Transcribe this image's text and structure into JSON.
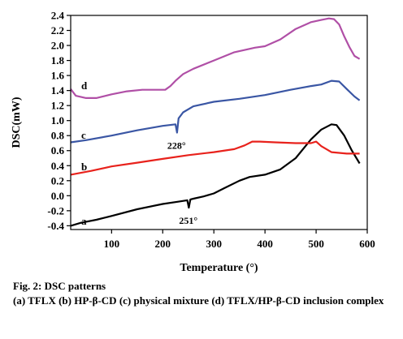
{
  "chart_data": {
    "type": "line",
    "xlabel": "Temperature (°)",
    "ylabel": "DSC(mW)",
    "xlim": [
      20,
      600
    ],
    "ylim": [
      -0.45,
      2.4
    ],
    "xticks": [
      100,
      200,
      300,
      400,
      500,
      600
    ],
    "yticks": [
      -0.4,
      -0.2,
      0.0,
      0.2,
      0.4,
      0.6,
      0.8,
      1.0,
      1.2,
      1.4,
      1.6,
      1.8,
      2.0,
      2.2,
      2.4
    ],
    "ytick_labels": [
      "-0.4",
      "-0.2",
      "0.0",
      "0.2",
      "0.4",
      "0.6",
      "0.8",
      "1.0",
      "1.2",
      "1.4",
      "1.6",
      "1.8",
      "2.0",
      "2.2",
      "2.4"
    ],
    "series": [
      {
        "label": "a",
        "color": "#000000",
        "x": [
          20,
          40,
          70,
          100,
          150,
          200,
          230,
          248,
          251,
          254,
          260,
          280,
          300,
          320,
          350,
          370,
          400,
          430,
          460,
          490,
          510,
          530,
          540,
          555,
          570,
          585
        ],
        "y": [
          -0.4,
          -0.36,
          -0.32,
          -0.27,
          -0.18,
          -0.11,
          -0.08,
          -0.06,
          -0.16,
          -0.05,
          -0.04,
          -0.01,
          0.03,
          0.1,
          0.2,
          0.25,
          0.28,
          0.35,
          0.5,
          0.75,
          0.88,
          0.95,
          0.94,
          0.8,
          0.6,
          0.43
        ]
      },
      {
        "label": "b",
        "color": "#e8221c",
        "x": [
          20,
          60,
          100,
          150,
          200,
          250,
          300,
          340,
          360,
          375,
          390,
          420,
          460,
          490,
          500,
          510,
          530,
          560,
          585
        ],
        "y": [
          0.28,
          0.33,
          0.39,
          0.44,
          0.49,
          0.54,
          0.58,
          0.62,
          0.67,
          0.72,
          0.72,
          0.71,
          0.7,
          0.7,
          0.72,
          0.66,
          0.58,
          0.56,
          0.56
        ]
      },
      {
        "label": "c",
        "color": "#3a56a4",
        "x": [
          20,
          50,
          100,
          150,
          200,
          225,
          228,
          231,
          240,
          260,
          300,
          350,
          400,
          450,
          490,
          510,
          530,
          545,
          560,
          575,
          585
        ],
        "y": [
          0.71,
          0.74,
          0.8,
          0.87,
          0.93,
          0.95,
          0.84,
          1.03,
          1.11,
          1.19,
          1.25,
          1.29,
          1.34,
          1.41,
          1.46,
          1.48,
          1.53,
          1.52,
          1.42,
          1.32,
          1.27
        ]
      },
      {
        "label": "d",
        "color": "#b04fa6",
        "x": [
          20,
          30,
          50,
          70,
          100,
          130,
          160,
          190,
          205,
          215,
          225,
          240,
          260,
          300,
          340,
          380,
          400,
          430,
          460,
          490,
          510,
          525,
          535,
          545,
          555,
          565,
          575,
          585
        ],
        "y": [
          1.42,
          1.33,
          1.3,
          1.3,
          1.35,
          1.39,
          1.41,
          1.41,
          1.41,
          1.46,
          1.53,
          1.62,
          1.69,
          1.8,
          1.91,
          1.97,
          1.99,
          2.08,
          2.22,
          2.31,
          2.34,
          2.36,
          2.35,
          2.28,
          2.12,
          1.98,
          1.86,
          1.82
        ]
      }
    ],
    "annotations": [
      {
        "text": "251°"
      },
      {
        "text": "228°"
      }
    ]
  },
  "caption": {
    "title": "Fig. 2: DSC patterns",
    "body": "(a) TFLX (b) HP-β-CD (c) physical mixture (d) TFLX/HP-β-CD inclusion complex"
  }
}
